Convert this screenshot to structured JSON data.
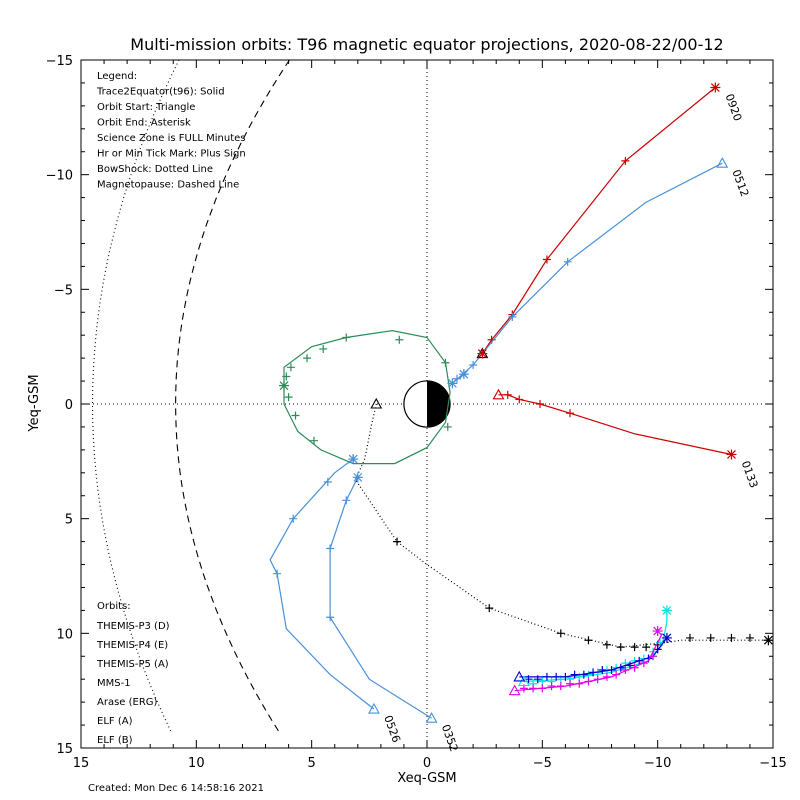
{
  "chart_data": {
    "type": "line",
    "title": "Multi-mission orbits: T96 magnetic equator projections, 2020-08-22/00-12",
    "xlabel": "Xeq-GSM",
    "ylabel": "Yeq-GSM",
    "xlim": [
      15,
      -15
    ],
    "ylim": [
      15,
      -15
    ],
    "xticks": [
      15,
      10,
      5,
      0,
      -5,
      -10,
      -15
    ],
    "yticks": [
      -15,
      -10,
      -5,
      0,
      5,
      10,
      15
    ],
    "created": "Created: Mon Dec  6 14:58:16 2021",
    "legend_lines": [
      "Legend:",
      "Trace2Equator(t96): Solid",
      "Orbit Start: Triangle",
      "Orbit End: Asterisk",
      "Science Zone is FULL Minutes",
      "Hr or Min Tick Mark: Plus Sign",
      "BowShock: Dotted Line",
      "Magnetopause: Dashed Line"
    ],
    "orbits_title": "Orbits:",
    "orbits_legend": [
      {
        "label": "THEMIS-P3 (D)",
        "color": "#00e5e5"
      },
      {
        "label": "THEMIS-P4 (E)",
        "color": "#0000cc"
      },
      {
        "label": "THEMIS-P5 (A)",
        "color": "#e500e5"
      },
      {
        "label": "MMS-1",
        "color": "#000000"
      },
      {
        "label": "Arase (ERG)",
        "color": "#2e8b57"
      },
      {
        "label": "ELF (A)",
        "color": "#4a90d9"
      },
      {
        "label": "ELF (B)",
        "color": "#cc0000"
      }
    ],
    "series": [
      {
        "id": "elfb1",
        "color": "#cc0000",
        "label": "0920",
        "points": [
          [
            -2.4,
            -2.2
          ],
          [
            -2.8,
            -2.8
          ],
          [
            -3.7,
            -3.9
          ],
          [
            -5.2,
            -6.3
          ],
          [
            -8.6,
            -10.6
          ],
          [
            -12.5,
            -13.8
          ]
        ],
        "ticks": [
          [
            -2.8,
            -2.8
          ],
          [
            -3.7,
            -3.9
          ],
          [
            -5.2,
            -6.3
          ],
          [
            -8.6,
            -10.6
          ]
        ]
      },
      {
        "id": "elfb2",
        "color": "#cc0000",
        "label": "0133",
        "points": [
          [
            -3.1,
            -0.4
          ],
          [
            -3.5,
            -0.4
          ],
          [
            -4,
            -0.2
          ],
          [
            -4.9,
            0
          ],
          [
            -6.2,
            0.4
          ],
          [
            -9,
            1.3
          ],
          [
            -13.2,
            2.2
          ]
        ],
        "ticks": [
          [
            -3.5,
            -0.4
          ],
          [
            -4,
            -0.2
          ],
          [
            -4.9,
            0
          ],
          [
            -6.2,
            0.4
          ]
        ]
      },
      {
        "id": "elfa1",
        "color": "#4a90d9",
        "label": "0512",
        "points": [
          [
            -1.1,
            -0.9
          ],
          [
            -2,
            -1.7
          ],
          [
            -2.4,
            -2.2
          ],
          [
            -3.7,
            -3.8
          ],
          [
            -6.1,
            -6.2
          ],
          [
            -9.5,
            -8.8
          ],
          [
            -12.8,
            -10.5
          ]
        ],
        "ticks": [
          [
            -1.3,
            -1.1
          ],
          [
            -1.6,
            -1.3
          ],
          [
            -2,
            -1.7
          ],
          [
            -3.7,
            -3.8
          ],
          [
            -6.1,
            -6.2
          ]
        ]
      },
      {
        "id": "elfa2",
        "color": "#4a90d9",
        "label": "0526",
        "points": [
          [
            3.2,
            2.4
          ],
          [
            4,
            3
          ],
          [
            5.8,
            5
          ],
          [
            6.8,
            6.8
          ],
          [
            6.5,
            7.4
          ],
          [
            6.1,
            9.8
          ],
          [
            4.2,
            11.8
          ],
          [
            2.3,
            13.3
          ]
        ],
        "ticks": [
          [
            4.3,
            3.4
          ],
          [
            5.8,
            5
          ],
          [
            6.5,
            7.4
          ]
        ]
      },
      {
        "id": "elfa3",
        "color": "#4a90d9",
        "label": "0352",
        "points": [
          [
            3,
            3.2
          ],
          [
            3.5,
            4.2
          ],
          [
            4.2,
            6.3
          ],
          [
            4.2,
            9.3
          ],
          [
            2.5,
            12
          ],
          [
            -0.2,
            13.7
          ]
        ],
        "ticks": [
          [
            3.5,
            4.2
          ],
          [
            4.2,
            6.3
          ],
          [
            4.2,
            9.3
          ]
        ]
      },
      {
        "id": "arase",
        "color": "#2e8b57",
        "label": "",
        "closed": true,
        "points": [
          [
            -1,
            -0.5
          ],
          [
            -0.8,
            -1.8
          ],
          [
            0,
            -2.9
          ],
          [
            1.5,
            -3.2
          ],
          [
            3.5,
            -2.9
          ],
          [
            5,
            -2.5
          ],
          [
            6.2,
            -1.6
          ],
          [
            6.2,
            0
          ],
          [
            5.6,
            1.2
          ],
          [
            4.6,
            2
          ],
          [
            3.2,
            2.6
          ],
          [
            1.4,
            2.6
          ],
          [
            0,
            1.9
          ],
          [
            -0.8,
            0.8
          ],
          [
            -1,
            -0.5
          ]
        ],
        "ticks": [
          [
            -0.8,
            -1.8
          ],
          [
            1.2,
            -2.8
          ],
          [
            3.5,
            -2.9
          ],
          [
            4.5,
            -2.4
          ],
          [
            5.2,
            -2
          ],
          [
            5.9,
            -1.6
          ],
          [
            6.1,
            -1.2
          ],
          [
            6,
            -0.3
          ],
          [
            5.7,
            0.5
          ],
          [
            4.9,
            1.6
          ],
          [
            3.2,
            2.4
          ],
          [
            -0.9,
            1
          ]
        ]
      },
      {
        "id": "mms",
        "color": "#000000",
        "label": "",
        "dotted": true,
        "points": [
          [
            2.2,
            0
          ],
          [
            2.4,
            0.9
          ],
          [
            2.7,
            2.4
          ],
          [
            3.1,
            3.3
          ],
          [
            1.3,
            6
          ],
          [
            0,
            7
          ],
          [
            -2.7,
            8.9
          ],
          [
            -5.8,
            10
          ],
          [
            -8.4,
            10.6
          ],
          [
            -10.4,
            10.4
          ],
          [
            -11,
            10.3
          ],
          [
            -12.5,
            10.3
          ],
          [
            -14.8,
            10.3
          ]
        ],
        "ticks": [
          [
            1.3,
            6
          ],
          [
            -2.7,
            8.9
          ],
          [
            -5.8,
            10
          ],
          [
            -7,
            10.3
          ],
          [
            -7.8,
            10.5
          ],
          [
            -8.4,
            10.6
          ],
          [
            -9,
            10.6
          ],
          [
            -9.5,
            10.6
          ],
          [
            -10,
            10.5
          ],
          [
            -11.4,
            10.2
          ],
          [
            -12.3,
            10.2
          ],
          [
            -13.2,
            10.2
          ],
          [
            -14,
            10.2
          ]
        ]
      },
      {
        "id": "th_d",
        "color": "#00e5e5",
        "label": "",
        "points": [
          [
            -4.2,
            12.1
          ],
          [
            -6,
            12
          ],
          [
            -8,
            11.7
          ],
          [
            -9.6,
            11.2
          ],
          [
            -10.2,
            10.5
          ],
          [
            -10.4,
            9.5
          ],
          [
            -10.4,
            9
          ]
        ],
        "ticks": [
          [
            -4.6,
            12.2
          ],
          [
            -5,
            12.1
          ],
          [
            -5.4,
            12.1
          ],
          [
            -5.8,
            12
          ],
          [
            -6.2,
            12
          ],
          [
            -6.6,
            11.9
          ],
          [
            -7,
            11.8
          ],
          [
            -7.4,
            11.7
          ],
          [
            -7.8,
            11.6
          ],
          [
            -8.2,
            11.5
          ],
          [
            -8.6,
            11.3
          ],
          [
            -9,
            11.2
          ],
          [
            -9.4,
            11.1
          ],
          [
            -9.8,
            10.8
          ],
          [
            -10.1,
            10.4
          ]
        ]
      },
      {
        "id": "th_e",
        "color": "#0000cc",
        "label": "",
        "points": [
          [
            -4,
            11.9
          ],
          [
            -6,
            11.9
          ],
          [
            -8,
            11.6
          ],
          [
            -9.8,
            11
          ],
          [
            -10.4,
            10.2
          ]
        ],
        "ticks": [
          [
            -4.4,
            12
          ],
          [
            -4.8,
            12
          ],
          [
            -5.2,
            11.9
          ],
          [
            -5.6,
            11.9
          ],
          [
            -6,
            11.9
          ],
          [
            -6.4,
            11.8
          ],
          [
            -6.8,
            11.8
          ],
          [
            -7.2,
            11.7
          ],
          [
            -7.6,
            11.6
          ],
          [
            -8,
            11.6
          ],
          [
            -8.4,
            11.5
          ],
          [
            -8.8,
            11.4
          ],
          [
            -9.2,
            11.2
          ],
          [
            -9.6,
            11.1
          ],
          [
            -10,
            10.7
          ]
        ]
      },
      {
        "id": "th_a",
        "color": "#e500e5",
        "label": "",
        "points": [
          [
            -3.8,
            12.5
          ],
          [
            -6,
            12.3
          ],
          [
            -8,
            11.9
          ],
          [
            -9.6,
            11.2
          ],
          [
            -10,
            10.4
          ],
          [
            -10.2,
            10
          ]
        ],
        "ticks": [
          [
            -4.2,
            12.4
          ],
          [
            -4.6,
            12.4
          ],
          [
            -5,
            12.4
          ],
          [
            -5.4,
            12.3
          ],
          [
            -5.8,
            12.3
          ],
          [
            -6.2,
            12.2
          ],
          [
            -6.6,
            12.2
          ],
          [
            -7,
            12.1
          ],
          [
            -7.4,
            12
          ],
          [
            -7.8,
            11.9
          ],
          [
            -8.2,
            11.8
          ],
          [
            -8.6,
            11.6
          ],
          [
            -9,
            11.5
          ],
          [
            -9.4,
            11.3
          ],
          [
            -9.8,
            11
          ]
        ]
      }
    ],
    "starts": [
      {
        "x": -3.1,
        "y": -0.4,
        "color": "#cc0000"
      },
      {
        "x": -2.4,
        "y": -2.2,
        "color": "#000000"
      },
      {
        "x": -12.8,
        "y": -10.5,
        "color": "#4a90d9"
      },
      {
        "x": 2.3,
        "y": 13.3,
        "color": "#4a90d9"
      },
      {
        "x": -0.2,
        "y": 13.7,
        "color": "#4a90d9"
      },
      {
        "x": 2.2,
        "y": 0,
        "color": "#000000"
      },
      {
        "x": -4.2,
        "y": 12.1,
        "color": "#00e5e5"
      },
      {
        "x": -4,
        "y": 11.9,
        "color": "#0000cc"
      },
      {
        "x": -3.8,
        "y": 12.5,
        "color": "#e500e5"
      }
    ],
    "ends": [
      {
        "x": -12.5,
        "y": -13.8,
        "color": "#cc0000"
      },
      {
        "x": -13.2,
        "y": 2.2,
        "color": "#cc0000"
      },
      {
        "x": -1.1,
        "y": -0.9,
        "color": "#4a90d9"
      },
      {
        "x": -1.6,
        "y": -1.3,
        "color": "#4a90d9"
      },
      {
        "x": -2.4,
        "y": -2.2,
        "color": "#cc0000"
      },
      {
        "x": 3.2,
        "y": 2.4,
        "color": "#4a90d9"
      },
      {
        "x": 3,
        "y": 3.2,
        "color": "#4a90d9"
      },
      {
        "x": 6.2,
        "y": -0.8,
        "color": "#2e8b57"
      },
      {
        "x": -14.8,
        "y": 10.3,
        "color": "#000000"
      },
      {
        "x": -10.4,
        "y": 9,
        "color": "#00e5e5"
      },
      {
        "x": -10.4,
        "y": 10.2,
        "color": "#0000cc"
      },
      {
        "x": -10,
        "y": 9.9,
        "color": "#e500e5"
      }
    ]
  }
}
